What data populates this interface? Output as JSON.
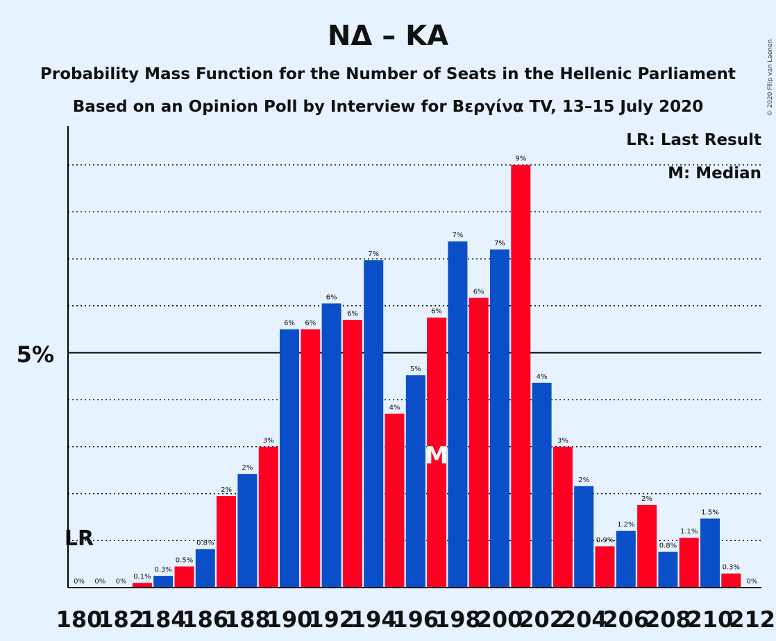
{
  "chart_data": {
    "type": "bar",
    "title": "ΝΔ – ΚΑ",
    "subtitle_1": "Probability Mass Function for the Number of Seats in the Hellenic Parliament",
    "subtitle_2": "Based on an Opinion Poll by Interview for Βεργίνα TV, 13–15 July 2020",
    "credit": "© 2020 Filip van Laenen",
    "legend": {
      "last_result": "LR: Last Result",
      "median": "M: Median",
      "placement": "top-right"
    },
    "markers": {
      "last_result_label": "LR",
      "last_result_seat": 180,
      "median_label": "M",
      "median_seat": 197
    },
    "ytick_label": "5%",
    "ytick_value": 5,
    "ylim": [
      0,
      9.8
    ],
    "grid_values": [
      1,
      2,
      3,
      4,
      5,
      6,
      7,
      8,
      9
    ],
    "x_tick_labels": [
      "180",
      "182",
      "184",
      "186",
      "188",
      "190",
      "192",
      "194",
      "196",
      "198",
      "200",
      "202",
      "204",
      "206",
      "208",
      "210",
      "212"
    ],
    "colors": {
      "blue": "#0a4fc8",
      "red": "#ff0022",
      "background": "#e6f2ff"
    },
    "categories": [
      180,
      181,
      182,
      183,
      184,
      185,
      186,
      187,
      188,
      189,
      190,
      191,
      192,
      193,
      194,
      195,
      196,
      197,
      198,
      199,
      200,
      201,
      202,
      203,
      204,
      205,
      206,
      207,
      208,
      209,
      210,
      211,
      212
    ],
    "values": [
      0,
      0,
      0,
      0.1,
      0.25,
      0.45,
      0.82,
      1.95,
      2.42,
      3.0,
      5.5,
      5.5,
      6.05,
      5.7,
      6.97,
      3.7,
      4.52,
      5.75,
      7.37,
      6.17,
      7.2,
      9.0,
      4.36,
      3.0,
      2.16,
      0.88,
      1.21,
      1.76,
      0.76,
      1.06,
      1.47,
      0.3,
      0
    ],
    "labels": [
      "0%",
      "0%",
      "0%",
      "0.1%",
      "0.3%",
      "0.5%",
      "0.8%",
      "2%",
      "2%",
      "3%",
      "6%",
      "6%",
      "6%",
      "6%",
      "7%",
      "4%",
      "5%",
      "6%",
      "7%",
      "6%",
      "7%",
      "9%",
      "4%",
      "3%",
      "2%",
      "0.9%",
      "1.2%",
      "2%",
      "0.8%",
      "1.1%",
      "1.5%",
      "0.3%",
      "0%"
    ]
  }
}
